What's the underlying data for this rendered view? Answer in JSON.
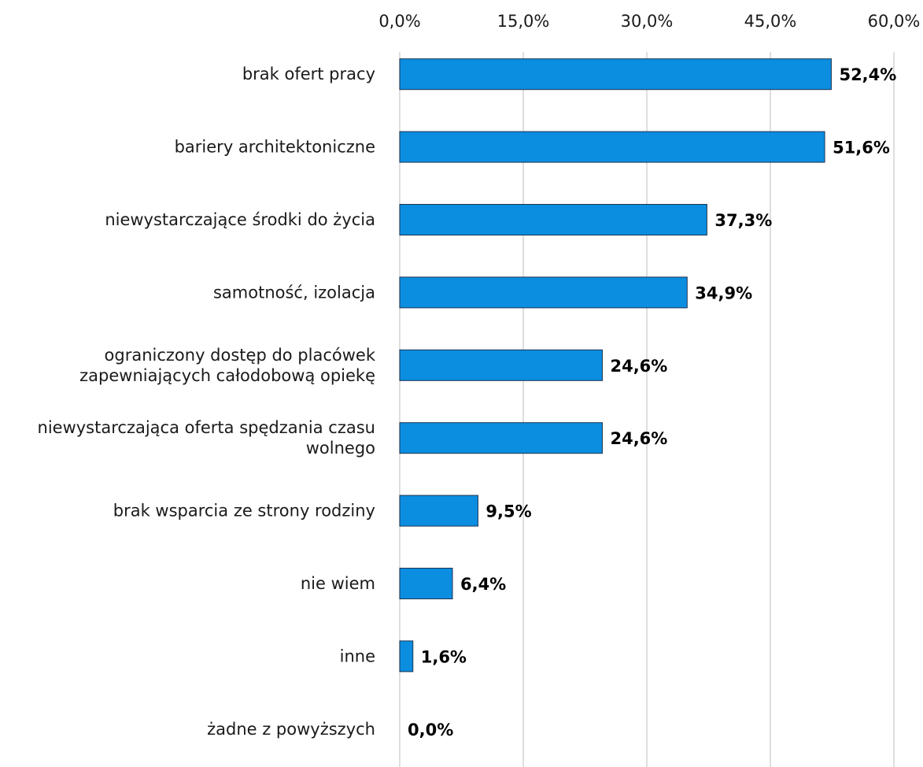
{
  "chart_data": {
    "type": "bar",
    "orientation": "horizontal",
    "title": "",
    "xlabel": "",
    "ylabel": "",
    "xlim": [
      0,
      60
    ],
    "x_ticks": [
      0,
      15,
      30,
      45,
      60
    ],
    "x_tick_labels": [
      "0,0%",
      "15,0%",
      "30,0%",
      "45,0%",
      "60,0%"
    ],
    "x_axis_position": "top",
    "grid": true,
    "legend": "none",
    "bar_color": "#0b8de0",
    "categories": [
      [
        "brak ofert pracy"
      ],
      [
        "bariery architektoniczne"
      ],
      [
        "niewystarczające środki do życia"
      ],
      [
        "samotność, izolacja"
      ],
      [
        "ograniczony dostęp do placówek",
        "zapewniających całodobową opiekę"
      ],
      [
        "niewystarczająca oferta spędzania czasu",
        "wolnego"
      ],
      [
        "brak wsparcia ze strony rodziny"
      ],
      [
        "nie wiem"
      ],
      [
        "inne"
      ],
      [
        "żadne z powyższych"
      ]
    ],
    "values": [
      52.4,
      51.6,
      37.3,
      34.9,
      24.6,
      24.6,
      9.5,
      6.4,
      1.6,
      0.0
    ],
    "value_labels": [
      "52,4%",
      "51,6%",
      "37,3%",
      "34,9%",
      "24,6%",
      "24,6%",
      "9,5%",
      "6,4%",
      "1,6%",
      "0,0%"
    ]
  }
}
